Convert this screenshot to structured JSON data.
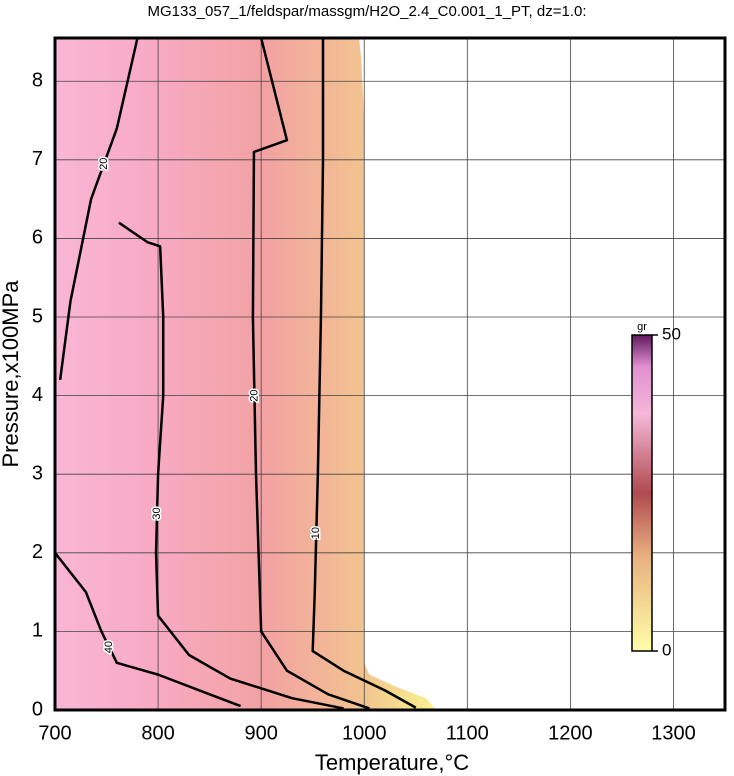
{
  "chart_data": {
    "type": "contour",
    "title": "MG133_057_1/feldspar/massgm/H2O_2.4_C0.001_1_PT, dz=1.0:",
    "x_label": "Temperature,°C",
    "y_label": "Pressure,x100MPa",
    "xlim": [
      700,
      1350
    ],
    "ylim": [
      0,
      8.55
    ],
    "xticks": [
      700,
      800,
      900,
      1000,
      1100,
      1200,
      1300
    ],
    "yticks": [
      0,
      1,
      2,
      3,
      4,
      5,
      6,
      7,
      8
    ],
    "grid": true,
    "domain": {
      "x": [
        700,
        995,
        997,
        1000,
        1000,
        1005,
        1030,
        1060,
        1070,
        700
      ],
      "y": [
        8.55,
        8.55,
        8.3,
        7.5,
        0.6,
        0.45,
        0.3,
        0.15,
        0,
        0
      ]
    },
    "contours": [
      {
        "level": 10,
        "x": [
          960,
          960,
          958,
          955,
          952,
          950,
          980,
          1020,
          1050
        ],
        "y": [
          8.55,
          7,
          5,
          3,
          1.5,
          0.75,
          0.5,
          0.25,
          0.03
        ]
      },
      {
        "level": 20,
        "x": [
          900,
          925,
          893,
          892,
          895,
          900,
          925,
          965,
          1005
        ],
        "y": [
          8.55,
          7.25,
          7.1,
          5,
          3,
          1,
          0.5,
          0.2,
          0.02
        ]
      },
      {
        "level": 20,
        "x": [
          780,
          760,
          735,
          715,
          705
        ],
        "y": [
          8.55,
          7.4,
          6.5,
          5.2,
          4.2
        ]
      },
      {
        "level": 30,
        "x": [
          762,
          790,
          802,
          805,
          805,
          800,
          798,
          800,
          830,
          870,
          930,
          980
        ],
        "y": [
          6.2,
          5.95,
          5.9,
          5,
          4,
          3,
          2,
          1.2,
          0.7,
          0.4,
          0.15,
          0.02
        ]
      },
      {
        "level": 40,
        "x": [
          700,
          730,
          745,
          760,
          800,
          850,
          880
        ],
        "y": [
          2.0,
          1.5,
          1.0,
          0.6,
          0.45,
          0.2,
          0.05
        ]
      }
    ],
    "colorbar": {
      "label": "gr",
      "min": 0,
      "max": 50,
      "ticks": [
        0,
        50
      ]
    }
  }
}
